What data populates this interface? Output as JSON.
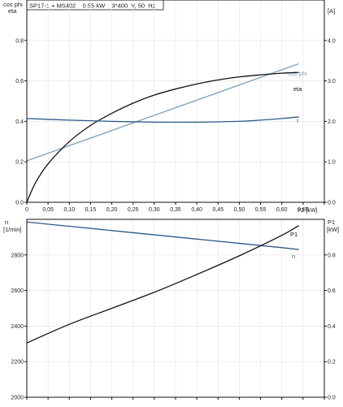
{
  "chart_data": [
    {
      "type": "line",
      "title": "SP17-1 + MS402    0.55 kW    3*400  V, 50  Hz",
      "xlabel": "P2 [kW]",
      "y_left_label": [
        "cos phi",
        "eta"
      ],
      "y_right_label": [
        "",
        "[A]"
      ],
      "xlim": [
        0,
        0.7
      ],
      "y_left_lim": [
        0,
        1.0
      ],
      "y_right_lim": [
        0,
        5.0
      ],
      "x_ticks": [
        "0",
        "0,05",
        "0,10",
        "0,15",
        "0,20",
        "0,25",
        "0,30",
        "0,35",
        "0,40",
        "0,45",
        "0,50",
        "0,55",
        "0,60",
        "0,65"
      ],
      "y_left_ticks": [
        "0.0",
        "0.2",
        "0.4",
        "0.6",
        "0.8"
      ],
      "y_right_ticks": [
        "0.0",
        "1.0",
        "2.0",
        "3.0",
        "4.0"
      ],
      "grid": true,
      "series": [
        {
          "name": "cos phi",
          "axis": "left",
          "color": "#7a9cbc",
          "x": [
            0,
            0.1,
            0.2,
            0.3,
            0.4,
            0.5,
            0.6,
            0.64
          ],
          "y": [
            0.205,
            0.28,
            0.355,
            0.43,
            0.505,
            0.58,
            0.655,
            0.685
          ]
        },
        {
          "name": "eta",
          "axis": "left",
          "color": "#111111",
          "x": [
            0,
            0.02,
            0.05,
            0.1,
            0.15,
            0.2,
            0.25,
            0.3,
            0.35,
            0.4,
            0.45,
            0.5,
            0.55,
            0.6,
            0.64
          ],
          "y": [
            0,
            0.095,
            0.19,
            0.3,
            0.38,
            0.44,
            0.49,
            0.53,
            0.56,
            0.585,
            0.605,
            0.62,
            0.63,
            0.638,
            0.642
          ]
        },
        {
          "name": "I",
          "axis": "right",
          "color": "#2d5a8c",
          "x": [
            0,
            0.1,
            0.2,
            0.3,
            0.4,
            0.5,
            0.55,
            0.6,
            0.64
          ],
          "y": [
            2.07,
            2.03,
            2.0,
            1.98,
            1.98,
            2.0,
            2.03,
            2.07,
            2.11
          ]
        }
      ]
    },
    {
      "type": "line",
      "title": "",
      "xlabel": "",
      "y_left_label": [
        "n",
        "[1/min]"
      ],
      "y_right_label": [
        "P1",
        "[kW]"
      ],
      "xlim": [
        0,
        0.7
      ],
      "y_left_lim": [
        2000,
        3000
      ],
      "y_right_lim": [
        0,
        1.0
      ],
      "y_left_ticks": [
        "2000",
        "2200",
        "2400",
        "2600",
        "2800"
      ],
      "y_right_ticks": [
        "0.0",
        "0.2",
        "0.4",
        "0.6",
        "0.8"
      ],
      "grid": true,
      "series": [
        {
          "name": "n",
          "axis": "left",
          "color": "#2d5a8c",
          "x": [
            0,
            0.1,
            0.2,
            0.3,
            0.4,
            0.5,
            0.6,
            0.64
          ],
          "y": [
            2985,
            2961,
            2937,
            2913,
            2889,
            2865,
            2841,
            2830
          ]
        },
        {
          "name": "P1",
          "axis": "right",
          "color": "#111111",
          "x": [
            0,
            0.1,
            0.2,
            0.3,
            0.4,
            0.5,
            0.6,
            0.64
          ],
          "y": [
            0.305,
            0.41,
            0.5,
            0.59,
            0.69,
            0.795,
            0.91,
            0.965
          ]
        }
      ]
    }
  ]
}
